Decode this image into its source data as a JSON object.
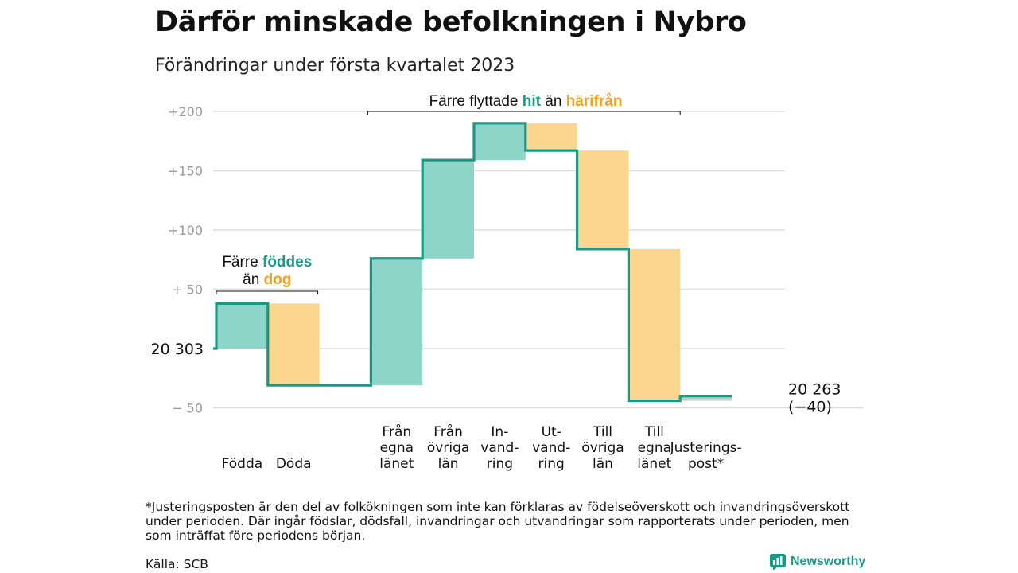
{
  "title": "Därför minskade befolkningen i Nybro",
  "subtitle": "Förändringar under första kvartalet 2023",
  "footnote": "*Justeringsposten är den del av folkökningen som inte kan förklaras av födelseöverskott och invandringsöverskott under perioden. Där ingår födslar, dödsfall, invandringar och utvandringar som rapporterats under perioden, men som inträffat före periodens början.",
  "source": "Källa: SCB",
  "brand": "Newsworthy",
  "colors": {
    "increase": "#8dd4c9",
    "decrease": "#fbd68e",
    "line": "#1b9784",
    "adjustment": "#c8c8c8",
    "grid": "#dddddd"
  },
  "chart_data": {
    "type": "waterfall",
    "start_value": 20303,
    "start_label": "20 303",
    "end_value": 20263,
    "end_label_value": "20 263",
    "end_label_change": "(−40)",
    "ylim": [
      -55,
      200
    ],
    "yticks": [
      {
        "value": 200,
        "label": "+200"
      },
      {
        "value": 150,
        "label": "+150"
      },
      {
        "value": 100,
        "label": "+100"
      },
      {
        "value": 50,
        "label": "+ 50"
      },
      {
        "value": 0,
        "label": ""
      },
      {
        "value": -50,
        "label": "− 50"
      }
    ],
    "steps": [
      {
        "label": [
          "Födda"
        ],
        "change": 38
      },
      {
        "label": [
          "Döda"
        ],
        "change": -69
      },
      {
        "label": [],
        "change": 0
      },
      {
        "label": [
          "Från",
          "egna",
          "länet"
        ],
        "change": 107
      },
      {
        "label": [
          "Från",
          "övriga",
          "län"
        ],
        "change": 83
      },
      {
        "label": [
          "In-",
          "vand-",
          "ring"
        ],
        "change": 31
      },
      {
        "label": [
          "Ut-",
          "vand-",
          "ring"
        ],
        "change": -23
      },
      {
        "label": [
          "Till",
          "övriga",
          "län"
        ],
        "change": -83
      },
      {
        "label": [
          "Till",
          "egna",
          "länet"
        ],
        "change": -128
      },
      {
        "label": [
          "Justerings-",
          "post*"
        ],
        "change": 4
      }
    ],
    "annotations": [
      {
        "parts": [
          {
            "text": "Färre ",
            "style": "plain"
          },
          {
            "text": "föddes",
            "style": "teal"
          }
        ]
      },
      {
        "parts": [
          {
            "text": "än ",
            "style": "plain"
          },
          {
            "text": "dog",
            "style": "orange"
          }
        ]
      },
      {
        "parts": [
          {
            "text": "Färre flyttade ",
            "style": "plain"
          },
          {
            "text": "hit",
            "style": "teal"
          },
          {
            "text": " än ",
            "style": "plain"
          },
          {
            "text": "härifrån",
            "style": "orange"
          }
        ]
      }
    ]
  }
}
